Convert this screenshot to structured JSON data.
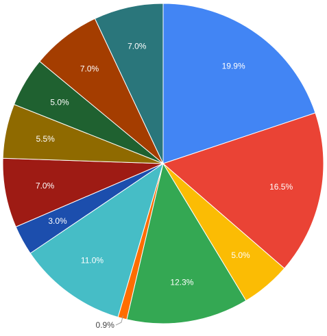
{
  "chart_data": {
    "type": "pie",
    "values": [
      19.9,
      16.5,
      5.0,
      12.3,
      0.9,
      11.0,
      3.0,
      7.0,
      5.5,
      5.0,
      7.0,
      7.0
    ],
    "labels": [
      "19.9%",
      "16.5%",
      "5.0%",
      "12.3%",
      "0.9%",
      "11.0%",
      "3.0%",
      "7.0%",
      "5.5%",
      "5.0%",
      "7.0%",
      "7.0%"
    ],
    "colors": [
      "#4285f4",
      "#ea4335",
      "#fbbc04",
      "#34a853",
      "#ff6d01",
      "#46bdc6",
      "#1c4ead",
      "#9e1b14",
      "#8f6a00",
      "#1f6130",
      "#a43d00",
      "#2a767b"
    ],
    "start_angle_deg": 0,
    "direction": "clockwise",
    "legend": "none",
    "title": ""
  }
}
